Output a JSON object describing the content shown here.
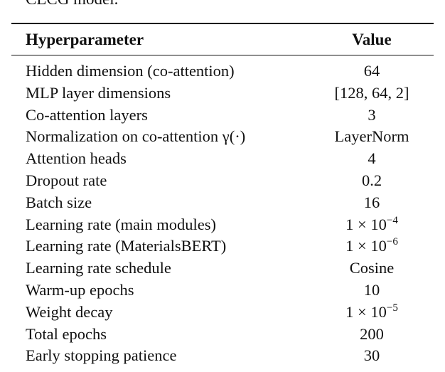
{
  "caption_fragment": "CLCG model.",
  "table": {
    "headers": [
      "Hyperparameter",
      "Value"
    ],
    "rows": [
      {
        "param": "Hidden dimension (co-attention)",
        "value": "64"
      },
      {
        "param": "MLP layer dimensions",
        "value": "[128, 64, 2]"
      },
      {
        "param": "Co-attention layers",
        "value": "3"
      },
      {
        "param": "Normalization on co-attention γ(·)",
        "value": "LayerNorm"
      },
      {
        "param": "Attention heads",
        "value": "4"
      },
      {
        "param": "Dropout rate",
        "value": "0.2"
      },
      {
        "param": "Batch size",
        "value": "16"
      },
      {
        "param": "Learning rate (main modules)",
        "value": "1 × 10",
        "exp": "−4"
      },
      {
        "param": "Learning rate (MaterialsBERT)",
        "value": "1 × 10",
        "exp": "−6"
      },
      {
        "param": "Learning rate schedule",
        "value": "Cosine"
      },
      {
        "param": "Warm-up epochs",
        "value": "10"
      },
      {
        "param": "Weight decay",
        "value": "1 × 10",
        "exp": "−5"
      },
      {
        "param": "Total epochs",
        "value": "200"
      },
      {
        "param": "Early stopping patience",
        "value": "30"
      }
    ]
  }
}
